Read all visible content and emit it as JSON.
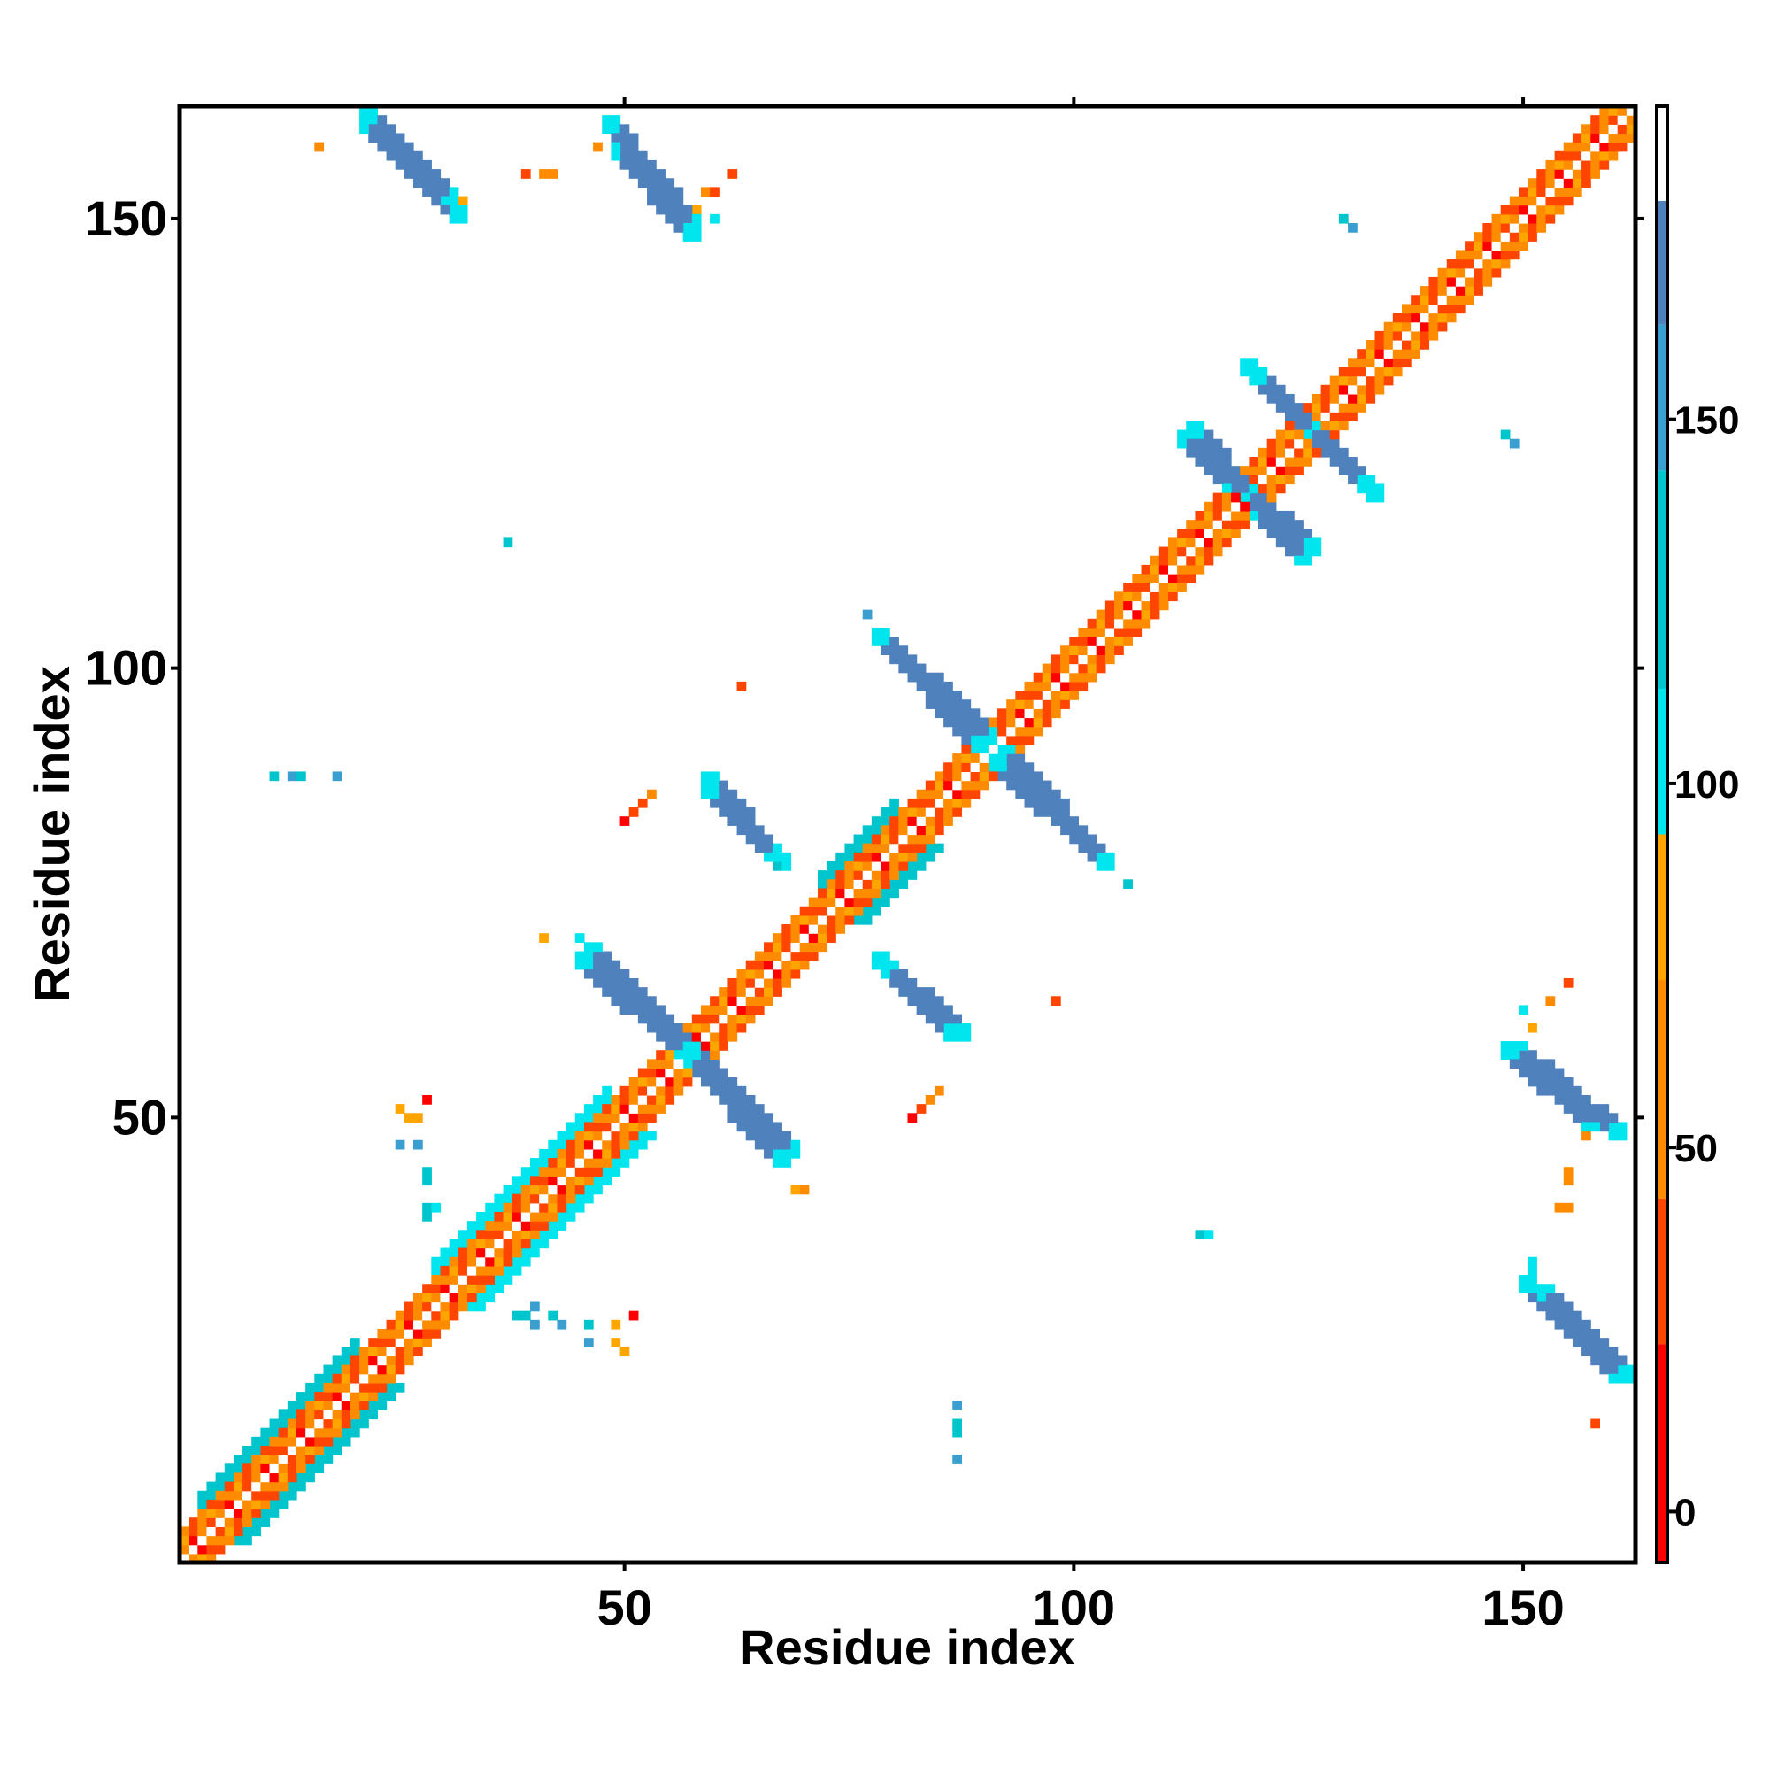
{
  "chart_data": {
    "type": "heatmap",
    "title": "",
    "xlabel": "Residue index",
    "ylabel": "Residue index",
    "xlim": [
      1,
      162
    ],
    "ylim": [
      1,
      162
    ],
    "x_ticks": [
      50,
      100,
      150
    ],
    "y_ticks": [
      50,
      100,
      150
    ],
    "colorbar": {
      "ticks": [
        0,
        50,
        100,
        150
      ],
      "range": [
        -7,
        193
      ],
      "segments": [
        {
          "from": -7,
          "to": 23,
          "color": "#ff0000"
        },
        {
          "from": 23,
          "to": 43,
          "color": "#ff4500"
        },
        {
          "from": 43,
          "to": 73,
          "color": "#ff8c00"
        },
        {
          "from": 73,
          "to": 93,
          "color": "#ffa500"
        },
        {
          "from": 93,
          "to": 113,
          "color": "#00e5ee"
        },
        {
          "from": 113,
          "to": 143,
          "color": "#00c5cd"
        },
        {
          "from": 143,
          "to": 163,
          "color": "#3a9fd0"
        },
        {
          "from": 163,
          "to": 180,
          "color": "#4f81bd"
        },
        {
          "from": 180,
          "to": 193,
          "color": "#ffffff"
        }
      ]
    },
    "palette": {
      "red": "#ff0000",
      "redorange": "#ff4500",
      "darkorange": "#ff8c00",
      "orange": "#ffa500",
      "cyan": "#00e5ee",
      "cyan2": "#00c5cd",
      "lightblue": "#3a9fd0",
      "steelblue": "#4f81bd"
    },
    "diagonal": {
      "from": 1,
      "to": 162,
      "cells": [
        {
          "offset": 0,
          "color": "#ffffff"
        },
        {
          "offset": 1,
          "pattern": [
            "#ff4500",
            "#ff8c00",
            "#ff0000",
            "#ff8c00"
          ]
        },
        {
          "offset": 2,
          "pattern": [
            "#ff8c00",
            "#ffa500",
            "#ff4500"
          ]
        },
        {
          "offset": 3,
          "pattern": [
            "#ff4500",
            "#ff8c00"
          ]
        }
      ]
    },
    "helix_blocks": [
      {
        "from": 3,
        "to": 20,
        "color": "#00c5cd"
      },
      {
        "from": 29,
        "to": 48,
        "color": "#00e5ee"
      },
      {
        "from": 72,
        "to": 80,
        "color": "#00c5cd"
      }
    ],
    "strand_segments": [
      {
        "x1": 21,
        "y1": 161,
        "x2": 30,
        "y2": 152,
        "color": "#4f81bd"
      },
      {
        "x1": 48,
        "y1": 160,
        "x2": 57,
        "y2": 149,
        "color": "#4f81bd"
      },
      {
        "x1": 45,
        "y1": 67,
        "x2": 56,
        "y2": 57,
        "color": "#4f81bd"
      },
      {
        "x1": 57,
        "y1": 57,
        "x2": 68,
        "y2": 46,
        "color": "#4f81bd"
      },
      {
        "x1": 59,
        "y1": 86,
        "x2": 66,
        "y2": 79,
        "color": "#4f81bd"
      },
      {
        "x1": 78,
        "y1": 103,
        "x2": 90,
        "y2": 92,
        "color": "#4f81bd"
      },
      {
        "x1": 91,
        "y1": 89,
        "x2": 102,
        "y2": 79,
        "color": "#4f81bd"
      },
      {
        "x1": 78,
        "y1": 67,
        "x2": 87,
        "y2": 59,
        "color": "#4f81bd"
      },
      {
        "x1": 113,
        "y1": 126,
        "x2": 119,
        "y2": 119,
        "color": "#4f81bd"
      },
      {
        "x1": 120,
        "y1": 117,
        "x2": 125,
        "y2": 112,
        "color": "#4f81bd"
      },
      {
        "x1": 120,
        "y1": 132,
        "x2": 126,
        "y2": 126,
        "color": "#4f81bd"
      },
      {
        "x1": 127,
        "y1": 125,
        "x2": 133,
        "y2": 119,
        "color": "#4f81bd"
      },
      {
        "x1": 148,
        "y1": 57,
        "x2": 157,
        "y2": 49,
        "color": "#4f81bd"
      },
      {
        "x1": 150,
        "y1": 31,
        "x2": 160,
        "y2": 21,
        "color": "#4f81bd"
      }
    ],
    "scatter_cells": [
      {
        "x": 16,
        "y": 158,
        "color": "#ff8c00"
      },
      {
        "x": 39,
        "y": 155,
        "color": "#ff4500"
      },
      {
        "x": 41,
        "y": 155,
        "color": "#ff8c00"
      },
      {
        "x": 42,
        "y": 155,
        "color": "#ff8c00"
      },
      {
        "x": 47,
        "y": 158,
        "color": "#ff8c00"
      },
      {
        "x": 59,
        "y": 153,
        "color": "#ff8c00"
      },
      {
        "x": 60,
        "y": 153,
        "color": "#ff4500"
      },
      {
        "x": 62,
        "y": 155,
        "color": "#ff4500"
      },
      {
        "x": 60,
        "y": 150,
        "color": "#00e5ee"
      },
      {
        "x": 58,
        "y": 151,
        "color": "#ffa500"
      },
      {
        "x": 31,
        "y": 152,
        "color": "#00e5ee"
      },
      {
        "x": 32,
        "y": 152,
        "color": "#ffa500"
      },
      {
        "x": 130,
        "y": 150,
        "color": "#00c5cd"
      },
      {
        "x": 131,
        "y": 149,
        "color": "#3a9fd0"
      },
      {
        "x": 148,
        "y": 126,
        "color": "#00c5cd"
      },
      {
        "x": 149,
        "y": 125,
        "color": "#3a9fd0"
      },
      {
        "x": 37,
        "y": 114,
        "color": "#00c5cd"
      },
      {
        "x": 77,
        "y": 106,
        "color": "#3a9fd0"
      },
      {
        "x": 63,
        "y": 98,
        "color": "#ff4500"
      },
      {
        "x": 11,
        "y": 88,
        "color": "#00c5cd"
      },
      {
        "x": 13,
        "y": 88,
        "color": "#3a9fd0"
      },
      {
        "x": 14,
        "y": 88,
        "color": "#00c5cd"
      },
      {
        "x": 18,
        "y": 88,
        "color": "#3a9fd0"
      },
      {
        "x": 50,
        "y": 83,
        "color": "#ff0000"
      },
      {
        "x": 51,
        "y": 84,
        "color": "#ff4500"
      },
      {
        "x": 52,
        "y": 85,
        "color": "#ff4500"
      },
      {
        "x": 53,
        "y": 86,
        "color": "#ff8c00"
      },
      {
        "x": 67,
        "y": 78,
        "color": "#00c5cd"
      },
      {
        "x": 106,
        "y": 76,
        "color": "#00c5cd"
      },
      {
        "x": 41,
        "y": 70,
        "color": "#ffa500"
      },
      {
        "x": 45,
        "y": 70,
        "color": "#00e5ee"
      },
      {
        "x": 98,
        "y": 63,
        "color": "#ff4500"
      },
      {
        "x": 82,
        "y": 50,
        "color": "#ff0000"
      },
      {
        "x": 83,
        "y": 51,
        "color": "#ff4500"
      },
      {
        "x": 84,
        "y": 52,
        "color": "#ff8c00"
      },
      {
        "x": 85,
        "y": 53,
        "color": "#ff8c00"
      },
      {
        "x": 25,
        "y": 51,
        "color": "#ffa500"
      },
      {
        "x": 26,
        "y": 50,
        "color": "#ffa500"
      },
      {
        "x": 27,
        "y": 50,
        "color": "#ffa500"
      },
      {
        "x": 28,
        "y": 52,
        "color": "#ff0000"
      },
      {
        "x": 25,
        "y": 47,
        "color": "#3a9fd0"
      },
      {
        "x": 27,
        "y": 47,
        "color": "#3a9fd0"
      },
      {
        "x": 28,
        "y": 44,
        "color": "#00c5cd"
      },
      {
        "x": 28,
        "y": 43,
        "color": "#00c5cd"
      },
      {
        "x": 28,
        "y": 40,
        "color": "#00c5cd"
      },
      {
        "x": 29,
        "y": 40,
        "color": "#00e5ee"
      },
      {
        "x": 28,
        "y": 39,
        "color": "#00c5cd"
      },
      {
        "x": 69,
        "y": 42,
        "color": "#ffa500"
      },
      {
        "x": 70,
        "y": 42,
        "color": "#ff8c00"
      },
      {
        "x": 114,
        "y": 37,
        "color": "#00c5cd"
      },
      {
        "x": 115,
        "y": 37,
        "color": "#00e5ee"
      },
      {
        "x": 38,
        "y": 28,
        "color": "#00c5cd"
      },
      {
        "x": 39,
        "y": 28,
        "color": "#00c5cd"
      },
      {
        "x": 40,
        "y": 29,
        "color": "#3a9fd0"
      },
      {
        "x": 40,
        "y": 27,
        "color": "#3a9fd0"
      },
      {
        "x": 42,
        "y": 28,
        "color": "#00c5cd"
      },
      {
        "x": 43,
        "y": 27,
        "color": "#3a9fd0"
      },
      {
        "x": 46,
        "y": 27,
        "color": "#00c5cd"
      },
      {
        "x": 46,
        "y": 25,
        "color": "#3a9fd0"
      },
      {
        "x": 49,
        "y": 27,
        "color": "#ffa500"
      },
      {
        "x": 49,
        "y": 25,
        "color": "#ffa500"
      },
      {
        "x": 50,
        "y": 24,
        "color": "#ffa500"
      },
      {
        "x": 51,
        "y": 28,
        "color": "#ff0000"
      },
      {
        "x": 87,
        "y": 18,
        "color": "#3a9fd0"
      },
      {
        "x": 87,
        "y": 16,
        "color": "#00c5cd"
      },
      {
        "x": 87,
        "y": 15,
        "color": "#00c5cd"
      },
      {
        "x": 87,
        "y": 12,
        "color": "#3a9fd0"
      },
      {
        "x": 155,
        "y": 65,
        "color": "#ff4500"
      },
      {
        "x": 153,
        "y": 63,
        "color": "#ff8c00"
      },
      {
        "x": 150,
        "y": 62,
        "color": "#00e5ee"
      },
      {
        "x": 151,
        "y": 60,
        "color": "#ffa500"
      },
      {
        "x": 157,
        "y": 48,
        "color": "#ff8c00"
      },
      {
        "x": 155,
        "y": 44,
        "color": "#ff8c00"
      },
      {
        "x": 155,
        "y": 43,
        "color": "#ff8c00"
      },
      {
        "x": 154,
        "y": 40,
        "color": "#ff8c00"
      },
      {
        "x": 155,
        "y": 40,
        "color": "#ff8c00"
      },
      {
        "x": 151,
        "y": 34,
        "color": "#00e5ee"
      },
      {
        "x": 151,
        "y": 33,
        "color": "#00e5ee"
      },
      {
        "x": 158,
        "y": 16,
        "color": "#ff4500"
      }
    ]
  }
}
